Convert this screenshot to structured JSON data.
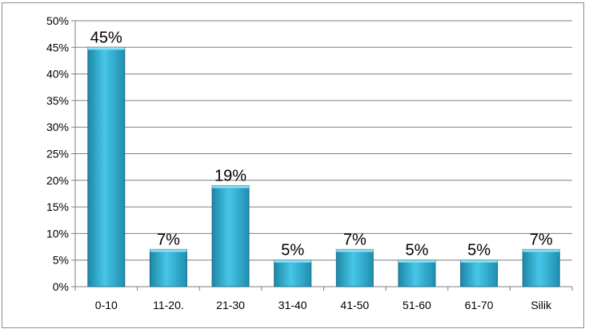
{
  "chart_data": {
    "type": "bar",
    "title": "",
    "xlabel": "",
    "ylabel": "",
    "categories": [
      "0-10",
      "11-20.",
      "21-30",
      "31-40",
      "41-50",
      "51-60",
      "61-70",
      "Silik"
    ],
    "values": [
      45,
      7,
      19,
      5,
      7,
      5,
      5,
      7
    ],
    "data_labels": [
      "45%",
      "7%",
      "19%",
      "5%",
      "7%",
      "5%",
      "5%",
      "7%"
    ],
    "y_ticks": [
      0,
      5,
      10,
      15,
      20,
      25,
      30,
      35,
      40,
      45,
      50
    ],
    "y_tick_labels": [
      "0%",
      "5%",
      "10%",
      "15%",
      "20%",
      "25%",
      "30%",
      "35%",
      "40%",
      "45%",
      "50%"
    ],
    "ylim": [
      0,
      50
    ],
    "grid": true,
    "legend": "none",
    "bar_color": "#2fb4d8"
  }
}
